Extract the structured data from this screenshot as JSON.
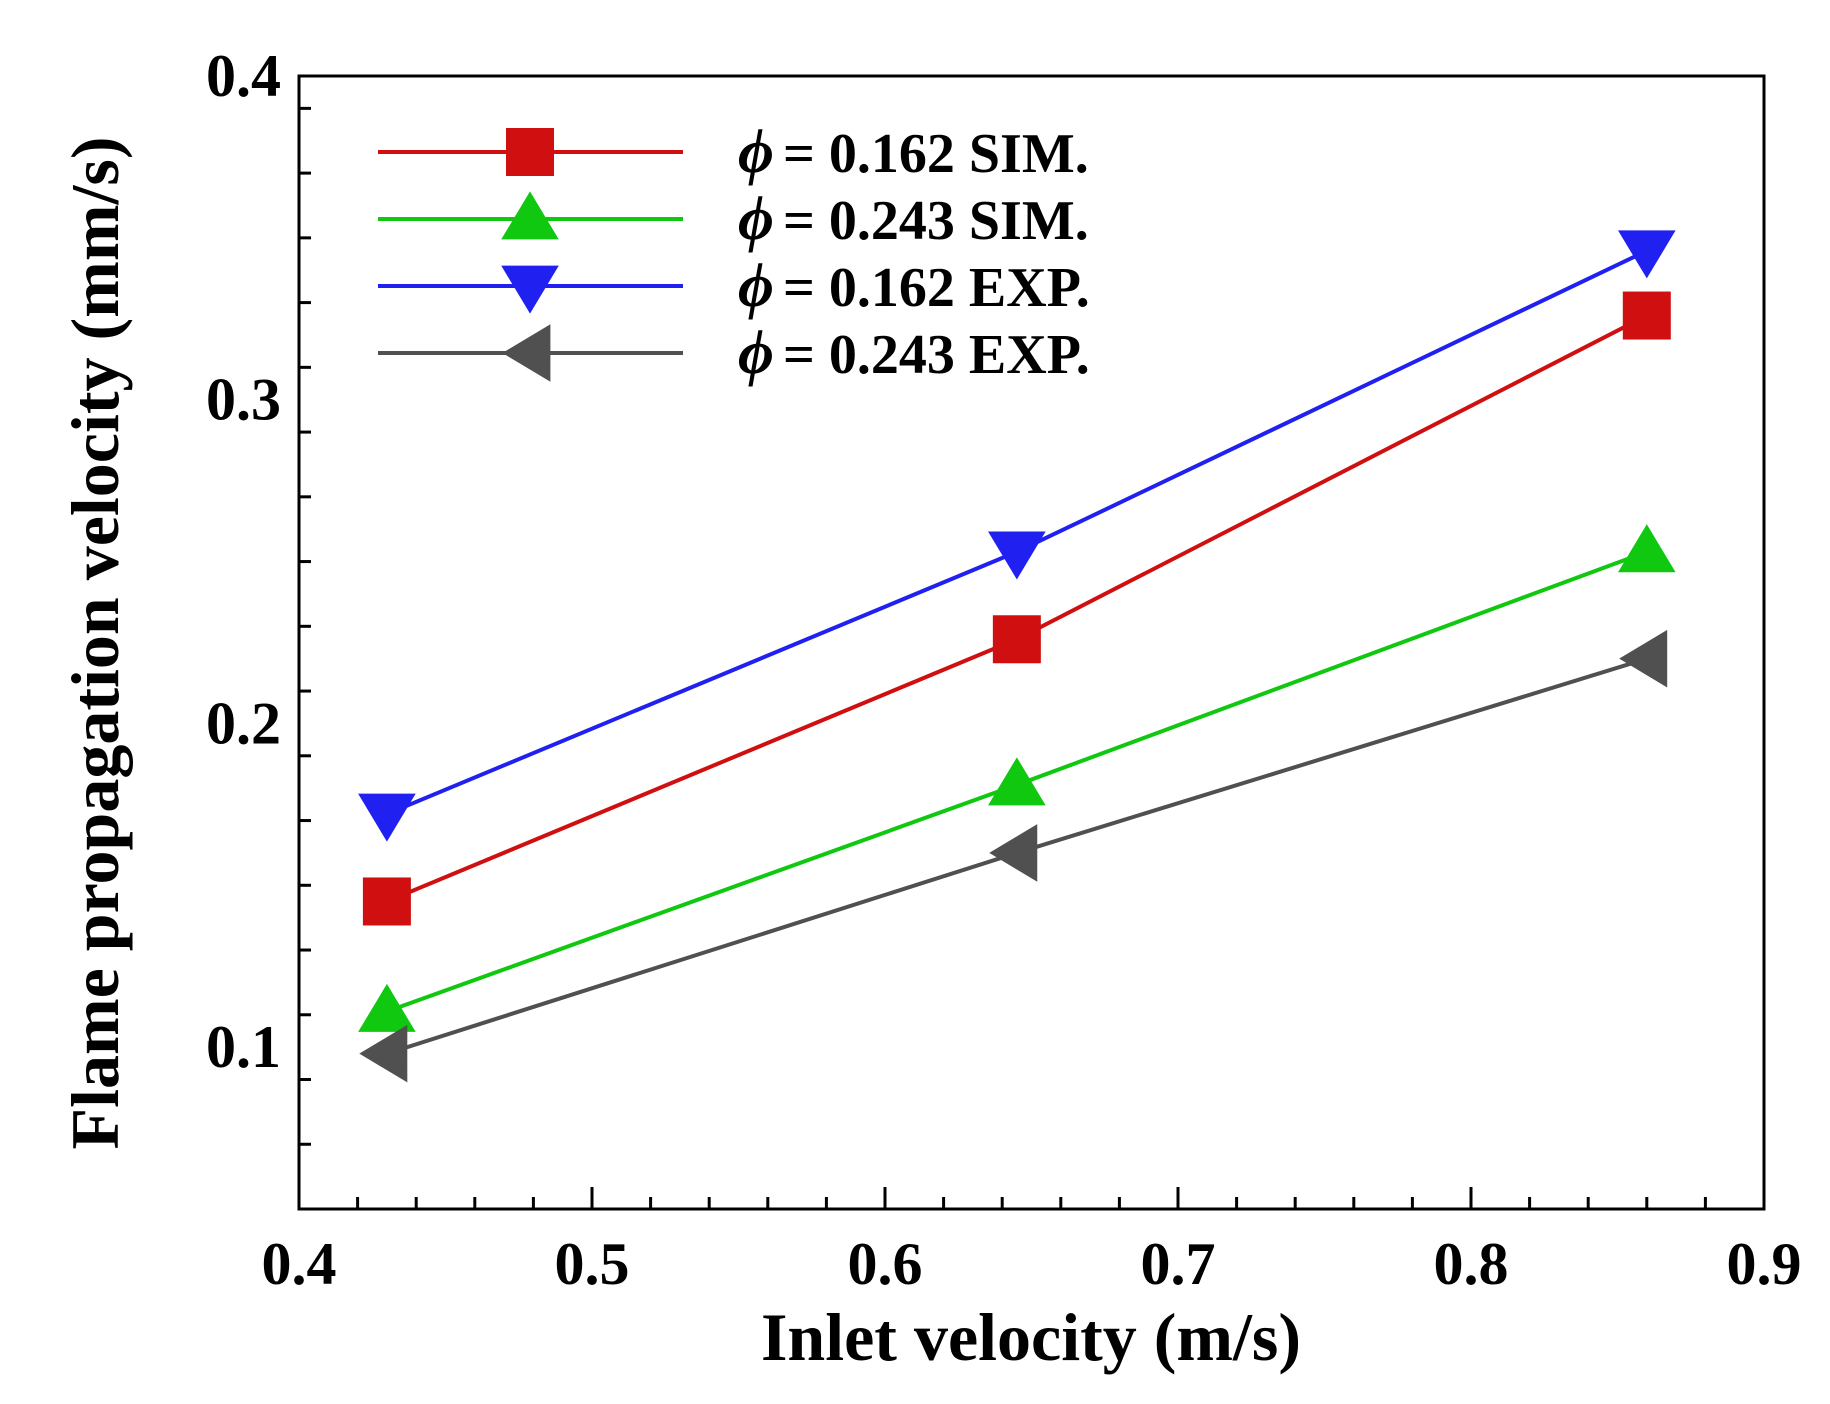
{
  "chart_data": {
    "type": "line",
    "title": "",
    "xlabel": "Inlet velocity (m/s)",
    "ylabel": "Flame propagation velocity (mm/s)",
    "xlim": [
      0.4,
      0.9
    ],
    "ylim": [
      0.05,
      0.4
    ],
    "xticks": [
      0.4,
      0.5,
      0.6,
      0.7,
      0.8,
      0.9
    ],
    "xtick_labels": [
      "0.4",
      "0.5",
      "0.6",
      "0.7",
      "0.8",
      "0.9"
    ],
    "yticks": [
      0.1,
      0.2,
      0.3,
      0.4
    ],
    "ytick_labels": [
      "0.1",
      "0.2",
      "0.3",
      "0.4"
    ],
    "grid": false,
    "legend_position": "top-left",
    "series": [
      {
        "name": "= 0.162 SIM.",
        "symbol": "ϕ",
        "marker": "square",
        "color": "#d01010",
        "x": [
          0.43,
          0.645,
          0.86
        ],
        "values": [
          0.145,
          0.226,
          0.326
        ]
      },
      {
        "name": "= 0.243 SIM.",
        "symbol": "ϕ",
        "marker": "triangle-up",
        "color": "#10c810",
        "x": [
          0.43,
          0.645,
          0.86
        ],
        "values": [
          0.111,
          0.181,
          0.253
        ]
      },
      {
        "name": "= 0.162 EXP.",
        "symbol": "ϕ",
        "marker": "triangle-down",
        "color": "#2020f0",
        "x": [
          0.43,
          0.645,
          0.86
        ],
        "values": [
          0.172,
          0.253,
          0.346
        ]
      },
      {
        "name": "= 0.243 EXP.",
        "symbol": "ϕ",
        "marker": "triangle-left",
        "color": "#505050",
        "x": [
          0.43,
          0.645,
          0.86
        ],
        "values": [
          0.098,
          0.16,
          0.22
        ]
      }
    ]
  }
}
